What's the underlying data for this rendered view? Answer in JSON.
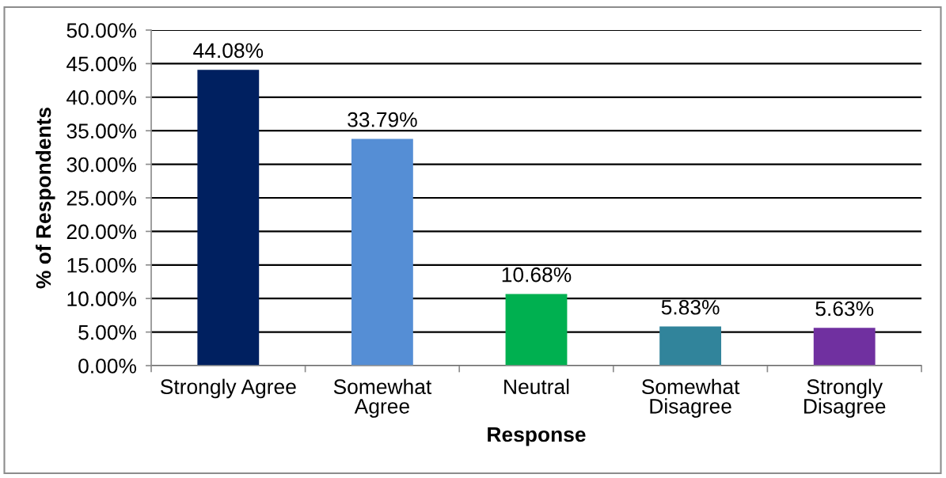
{
  "chart_data": {
    "type": "bar",
    "xlabel": "Response",
    "ylabel": "% of Respondents",
    "categories": [
      "Strongly Agree",
      "Somewhat Agree",
      "Neutral",
      "Somewhat Disagree",
      "Strongly Disagree"
    ],
    "values": [
      44.08,
      33.79,
      10.68,
      5.83,
      5.63
    ],
    "colors": [
      "#002060",
      "#558ed5",
      "#00b050",
      "#31849b",
      "#7030a0"
    ],
    "value_labels": [
      "44.08%",
      "33.79%",
      "10.68%",
      "5.83%",
      "5.63%"
    ],
    "ylim": [
      0,
      50
    ],
    "yticks": [
      {
        "value": 0,
        "label": "0.00%"
      },
      {
        "value": 5,
        "label": "5.00%"
      },
      {
        "value": 10,
        "label": "10.00%"
      },
      {
        "value": 15,
        "label": "15.00%"
      },
      {
        "value": 20,
        "label": "20.00%"
      },
      {
        "value": 25,
        "label": "25.00%"
      },
      {
        "value": 30,
        "label": "30.00%"
      },
      {
        "value": 35,
        "label": "35.00%"
      },
      {
        "value": 40,
        "label": "40.00%"
      },
      {
        "value": 45,
        "label": "45.00%"
      },
      {
        "value": 50,
        "label": "50.00%"
      }
    ],
    "grid": "y"
  }
}
